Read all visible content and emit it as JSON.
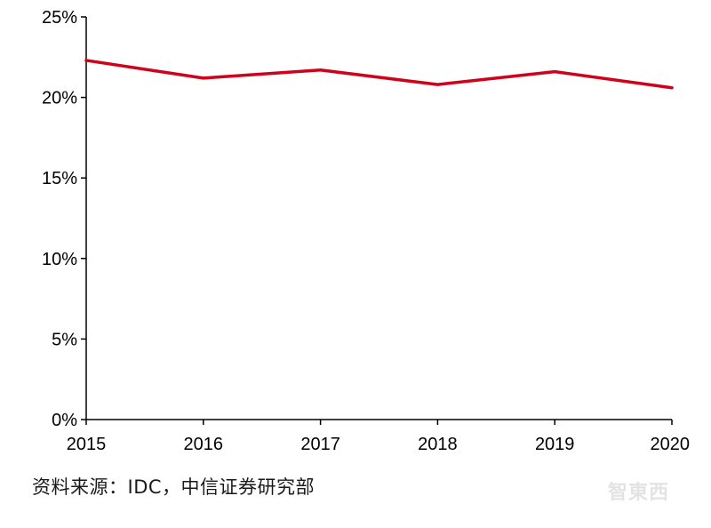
{
  "chart_data": {
    "type": "line",
    "x": [
      "2015",
      "2016",
      "2017",
      "2018",
      "2019",
      "2020"
    ],
    "series": [
      {
        "values": [
          22.3,
          21.2,
          21.7,
          20.8,
          21.6,
          20.6
        ],
        "color": "#d0021b"
      }
    ],
    "yticks": [
      0,
      5,
      10,
      15,
      20,
      25
    ],
    "ytick_labels": [
      "0%",
      "5%",
      "10%",
      "15%",
      "20%",
      "25%"
    ],
    "ylim": [
      0,
      25
    ],
    "grid": false,
    "title": "",
    "xlabel": "",
    "ylabel": ""
  },
  "source_text": "资料来源：IDC，中信证券研究部",
  "watermark_text": "智東西"
}
